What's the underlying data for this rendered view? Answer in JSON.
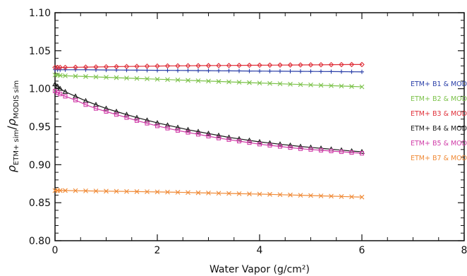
{
  "chart_data": {
    "type": "scatter",
    "xlabel": "Water Vapor (g/cm²)",
    "ylabel": "ρETM+ sim/ρMODIS sim",
    "ylabel_parts": {
      "rho1": "ρ",
      "sub1": "ETM+ sim",
      "slash": "/",
      "rho2": "ρ",
      "sub2": "MODIS sim"
    },
    "xlim": [
      0,
      8
    ],
    "ylim": [
      0.8,
      1.1
    ],
    "x_ticks": [
      "0",
      "2",
      "4",
      "6",
      "8"
    ],
    "y_ticks": [
      "0.80",
      "0.85",
      "0.90",
      "0.95",
      "1.00",
      "1.05",
      "1.10"
    ],
    "grid": false,
    "legend_position": "right",
    "series": [
      {
        "name": "ETM+ B1 & MOD B3",
        "color": "#2a3fa8",
        "marker": "plus",
        "x": [
          0.0,
          0.05,
          0.1,
          0.2,
          0.4,
          0.6,
          0.8,
          1.0,
          1.2,
          1.4,
          1.6,
          1.8,
          2.0,
          2.2,
          2.4,
          2.6,
          2.8,
          3.0,
          3.2,
          3.4,
          3.6,
          3.8,
          4.0,
          4.2,
          4.4,
          4.6,
          4.8,
          5.0,
          5.2,
          5.4,
          5.6,
          5.8,
          6.0
        ],
        "y": [
          1.025,
          1.025,
          1.025,
          1.025,
          1.025,
          1.025,
          1.0248,
          1.0247,
          1.0246,
          1.0245,
          1.0244,
          1.0243,
          1.0242,
          1.0241,
          1.024,
          1.0239,
          1.0238,
          1.0237,
          1.0236,
          1.0235,
          1.0234,
          1.0233,
          1.0232,
          1.0231,
          1.023,
          1.0229,
          1.0228,
          1.0227,
          1.0226,
          1.0225,
          1.0224,
          1.0223,
          1.0222
        ]
      },
      {
        "name": "ETM+ B2 & MOD B4",
        "color": "#7cc24a",
        "marker": "x",
        "x": [
          0.0,
          0.05,
          0.1,
          0.2,
          0.4,
          0.6,
          0.8,
          1.0,
          1.2,
          1.4,
          1.6,
          1.8,
          2.0,
          2.2,
          2.4,
          2.6,
          2.8,
          3.0,
          3.2,
          3.4,
          3.6,
          3.8,
          4.0,
          4.2,
          4.4,
          4.6,
          4.8,
          5.0,
          5.2,
          5.4,
          5.6,
          5.8,
          6.0
        ],
        "y": [
          1.018,
          1.018,
          1.0175,
          1.017,
          1.0165,
          1.016,
          1.0155,
          1.015,
          1.0145,
          1.014,
          1.0135,
          1.013,
          1.0125,
          1.012,
          1.0115,
          1.011,
          1.0105,
          1.01,
          1.0095,
          1.009,
          1.0085,
          1.008,
          1.0075,
          1.007,
          1.0065,
          1.006,
          1.0055,
          1.005,
          1.0045,
          1.004,
          1.0035,
          1.003,
          1.0025
        ]
      },
      {
        "name": "ETM+ B3 & MOD B1",
        "color": "#e0303a",
        "marker": "diamond",
        "x": [
          0.0,
          0.05,
          0.1,
          0.2,
          0.4,
          0.6,
          0.8,
          1.0,
          1.2,
          1.4,
          1.6,
          1.8,
          2.0,
          2.2,
          2.4,
          2.6,
          2.8,
          3.0,
          3.2,
          3.4,
          3.6,
          3.8,
          4.0,
          4.2,
          4.4,
          4.6,
          4.8,
          5.0,
          5.2,
          5.4,
          5.6,
          5.8,
          6.0
        ],
        "y": [
          1.028,
          1.028,
          1.028,
          1.028,
          1.0282,
          1.0284,
          1.0286,
          1.0288,
          1.029,
          1.0292,
          1.0294,
          1.0296,
          1.0298,
          1.03,
          1.0301,
          1.0302,
          1.0303,
          1.0304,
          1.0305,
          1.0306,
          1.0307,
          1.0308,
          1.0309,
          1.031,
          1.0311,
          1.0312,
          1.0313,
          1.0314,
          1.0315,
          1.0316,
          1.0317,
          1.0318,
          1.0318
        ]
      },
      {
        "name": "ETM+ B4 & MOD B2",
        "color": "#1a1a1a",
        "marker": "triangle",
        "x": [
          0.0,
          0.05,
          0.1,
          0.2,
          0.4,
          0.6,
          0.8,
          1.0,
          1.2,
          1.4,
          1.6,
          1.8,
          2.0,
          2.2,
          2.4,
          2.6,
          2.8,
          3.0,
          3.2,
          3.4,
          3.6,
          3.8,
          4.0,
          4.2,
          4.4,
          4.6,
          4.8,
          5.0,
          5.2,
          5.4,
          5.6,
          5.8,
          6.0
        ],
        "y": [
          1.006,
          1.003,
          1.0,
          0.996,
          0.99,
          0.984,
          0.979,
          0.974,
          0.97,
          0.966,
          0.962,
          0.9585,
          0.955,
          0.952,
          0.949,
          0.946,
          0.9435,
          0.941,
          0.9385,
          0.936,
          0.934,
          0.932,
          0.93,
          0.9285,
          0.927,
          0.9255,
          0.924,
          0.9228,
          0.9216,
          0.9204,
          0.9192,
          0.918,
          0.917
        ]
      },
      {
        "name": "ETM+ B5 & MOD B6",
        "color": "#d03ca8",
        "marker": "square",
        "x": [
          0.0,
          0.05,
          0.1,
          0.2,
          0.4,
          0.6,
          0.8,
          1.0,
          1.2,
          1.4,
          1.6,
          1.8,
          2.0,
          2.2,
          2.4,
          2.6,
          2.8,
          3.0,
          3.2,
          3.4,
          3.6,
          3.8,
          4.0,
          4.2,
          4.4,
          4.6,
          4.8,
          5.0,
          5.2,
          5.4,
          5.6,
          5.8,
          6.0
        ],
        "y": [
          0.997,
          0.995,
          0.993,
          0.99,
          0.985,
          0.979,
          0.974,
          0.97,
          0.966,
          0.962,
          0.958,
          0.9545,
          0.951,
          0.948,
          0.945,
          0.9425,
          0.94,
          0.9375,
          0.935,
          0.933,
          0.931,
          0.929,
          0.927,
          0.9255,
          0.924,
          0.9225,
          0.921,
          0.92,
          0.919,
          0.918,
          0.917,
          0.916,
          0.915
        ]
      },
      {
        "name": "ETM+ B7 & MOD B7",
        "color": "#f08a36",
        "marker": "x",
        "x": [
          0.0,
          0.05,
          0.1,
          0.2,
          0.4,
          0.6,
          0.8,
          1.0,
          1.2,
          1.4,
          1.6,
          1.8,
          2.0,
          2.2,
          2.4,
          2.6,
          2.8,
          3.0,
          3.2,
          3.4,
          3.6,
          3.8,
          4.0,
          4.2,
          4.4,
          4.6,
          4.8,
          5.0,
          5.2,
          5.4,
          5.6,
          5.8,
          6.0
        ],
        "y": [
          0.866,
          0.866,
          0.866,
          0.866,
          0.8658,
          0.8656,
          0.8654,
          0.8652,
          0.865,
          0.8648,
          0.8646,
          0.8644,
          0.8642,
          0.864,
          0.8637,
          0.8634,
          0.8631,
          0.8628,
          0.8625,
          0.8622,
          0.8619,
          0.8616,
          0.8613,
          0.861,
          0.8606,
          0.8602,
          0.8598,
          0.8594,
          0.859,
          0.8586,
          0.8582,
          0.8578,
          0.8574
        ]
      }
    ]
  }
}
